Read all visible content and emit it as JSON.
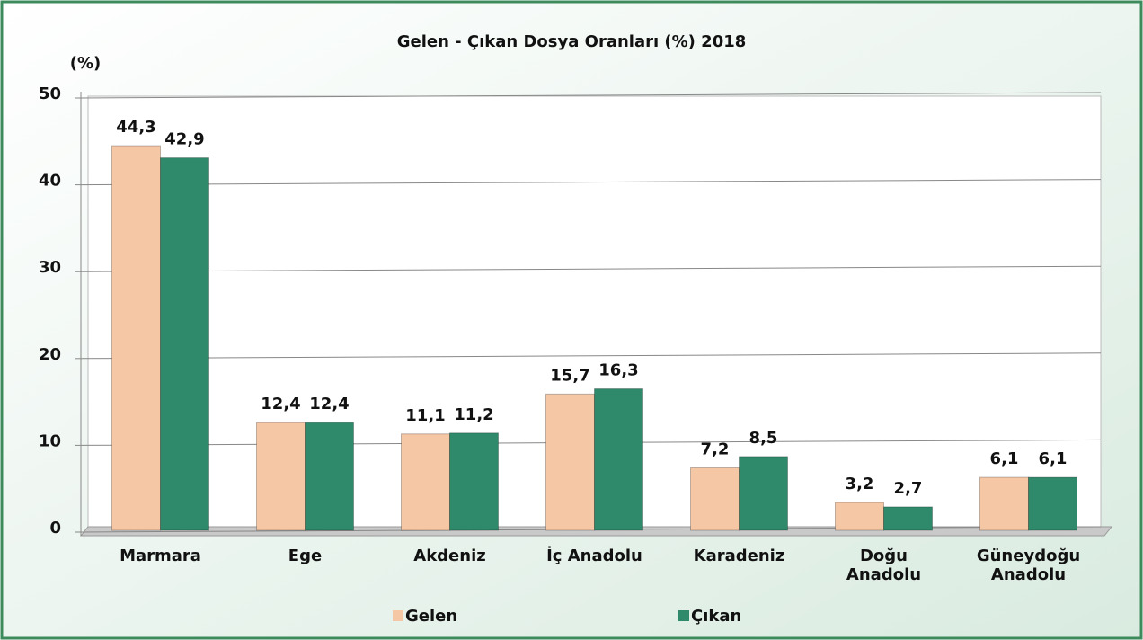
{
  "chart_data": {
    "type": "bar",
    "title": "Gelen - Çıkan Dosya Oranları (%) 2018",
    "y_label": "(%)",
    "categories": [
      "Marmara",
      "Ege",
      "Akdeniz",
      "İç Anadolu",
      "Karadeniz",
      "Doğu Anadolu",
      "Güneydoğu Anadolu"
    ],
    "series": [
      {
        "name": "Gelen",
        "color": "#f6c7a5",
        "values": [
          44.3,
          12.4,
          11.1,
          15.7,
          7.2,
          3.2,
          6.1
        ],
        "value_labels": [
          "44,3",
          "12,4",
          "11,1",
          "15,7",
          "7,2",
          "3,2",
          "6,1"
        ]
      },
      {
        "name": "Çıkan",
        "color": "#2f8a6b",
        "values": [
          42.9,
          12.4,
          11.2,
          16.3,
          8.5,
          2.7,
          6.1
        ],
        "value_labels": [
          "42,9",
          "12,4",
          "11,2",
          "16,3",
          "8,5",
          "2,7",
          "6,1"
        ]
      }
    ],
    "ylim": [
      0,
      50
    ],
    "yticks": [
      0,
      10,
      20,
      30,
      40,
      50
    ],
    "grid": true,
    "legend": "bottom"
  }
}
